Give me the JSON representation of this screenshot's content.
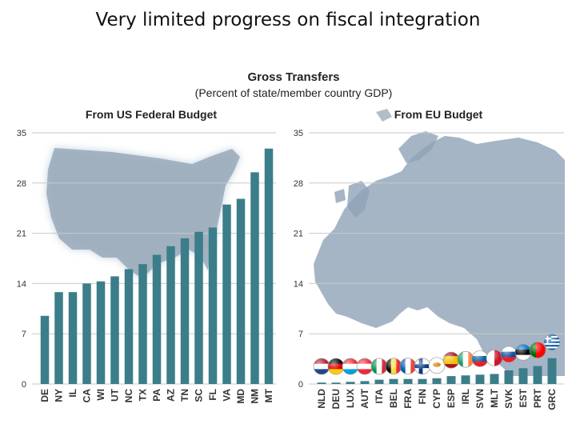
{
  "slide_title": "Very limited progress on fiscal integration",
  "colors": {
    "bar": "#3c7d8a",
    "gridline": "#c9c9c9",
    "map": "#8ea3b6",
    "text": "#222222"
  },
  "chart_data": [
    {
      "type": "bar",
      "title": "Gross Transfers",
      "subtitle": "(Percent of state/member country GDP)",
      "panel_title": "From US Federal Budget",
      "background": "us-map",
      "ylim": [
        0,
        35
      ],
      "yticks": [
        0,
        7,
        14,
        21,
        28,
        35
      ],
      "grid": true,
      "categories": [
        "DE",
        "NY",
        "IL",
        "CA",
        "WI",
        "UT",
        "NC",
        "TX",
        "PA",
        "AZ",
        "TN",
        "SC",
        "FL",
        "VA",
        "MD",
        "NM",
        "MT"
      ],
      "values": [
        9.5,
        12.8,
        12.8,
        14.0,
        14.3,
        15.0,
        16.0,
        16.7,
        18.0,
        19.2,
        20.3,
        21.2,
        21.8,
        25.0,
        25.8,
        29.5,
        32.8
      ]
    },
    {
      "type": "bar",
      "panel_title": "From EU Budget",
      "background": "europe-map",
      "ylim": [
        0,
        35
      ],
      "yticks": [
        0,
        7,
        14,
        21,
        28,
        35
      ],
      "grid": true,
      "categories": [
        "NLD",
        "DEU",
        "LUX",
        "AUT",
        "ITA",
        "BEL",
        "FRA",
        "FIN",
        "CYP",
        "ESP",
        "IRL",
        "SVN",
        "MLT",
        "SVK",
        "EST",
        "PRT",
        "GRC"
      ],
      "values": [
        0.2,
        0.2,
        0.3,
        0.4,
        0.6,
        0.7,
        0.7,
        0.7,
        0.8,
        1.1,
        1.2,
        1.3,
        1.4,
        1.9,
        2.2,
        2.5,
        3.6
      ],
      "flags": [
        "netherlands-flag",
        "germany-flag",
        "luxembourg-flag",
        "austria-flag",
        "italy-flag",
        "belgium-flag",
        "france-flag",
        "finland-flag",
        "cyprus-flag",
        "spain-flag",
        "ireland-flag",
        "slovenia-flag",
        "malta-flag",
        "slovakia-flag",
        "estonia-flag",
        "portugal-flag",
        "greece-flag"
      ]
    }
  ]
}
